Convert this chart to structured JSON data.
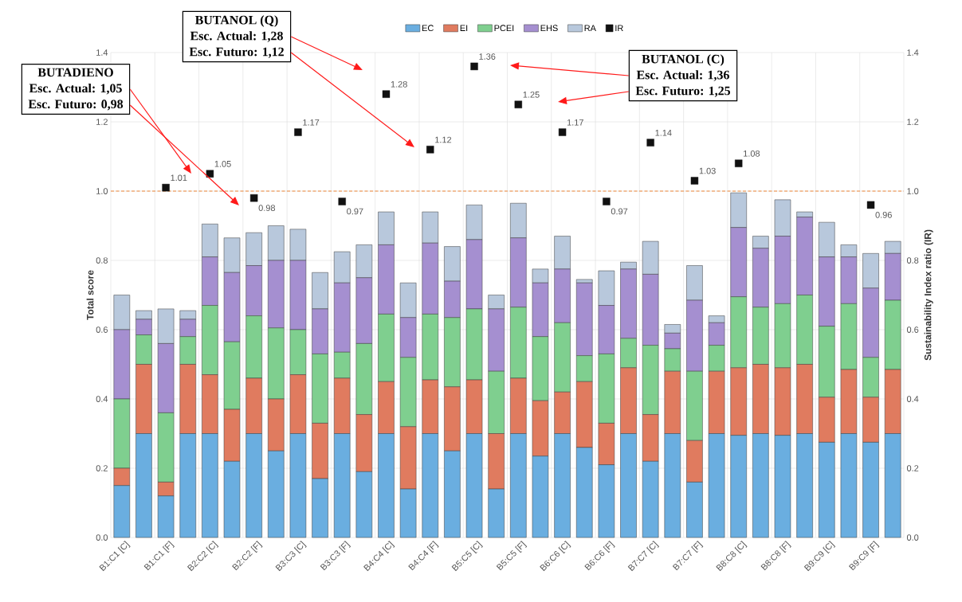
{
  "chart_data": {
    "type": "bar",
    "stacked": true,
    "ylabel": "Total score",
    "y2label": "Sustainability Index ratio (IR)",
    "categories": [
      "B1:C1 [C]",
      null,
      "B1:C1 [F]",
      null,
      "B2:C2 [C]",
      null,
      "B2:C2 [F]",
      null,
      "B3:C3 [C]",
      null,
      "B3:C3 [F]",
      null,
      "B4:C4 [C]",
      null,
      "B4:C4 [F]",
      null,
      "B5:C5 [C]",
      null,
      "B5:C5 [F]",
      null,
      "B6:C6 [C]",
      null,
      "B6:C6 [F]",
      null,
      "B7:C7 [C]",
      null,
      "B7:C7 [F]",
      null,
      "B8:C8 [C]",
      null,
      "B8:C8 [F]",
      null,
      "B9:C9 [C]",
      null,
      "B9:C9 [F]",
      null
    ],
    "series": [
      {
        "name": "EC",
        "color": "#6aaee0",
        "values": [
          0.15,
          0.3,
          0.12,
          0.3,
          0.3,
          0.22,
          0.3,
          0.25,
          0.3,
          0.17,
          0.3,
          0.19,
          0.3,
          0.14,
          0.3,
          0.25,
          0.3,
          0.14,
          0.3,
          0.235,
          0.3,
          0.26,
          0.21,
          0.3,
          0.22,
          0.3,
          0.16,
          0.3,
          0.295,
          0.3,
          0.295,
          0.3,
          0.275,
          0.3,
          0.275,
          0.3
        ]
      },
      {
        "name": "EI",
        "color": "#e07b5f",
        "values": [
          0.05,
          0.2,
          0.04,
          0.2,
          0.17,
          0.15,
          0.16,
          0.15,
          0.17,
          0.16,
          0.16,
          0.165,
          0.15,
          0.18,
          0.155,
          0.185,
          0.155,
          0.16,
          0.16,
          0.16,
          0.12,
          0.19,
          0.12,
          0.19,
          0.135,
          0.18,
          0.12,
          0.18,
          0.195,
          0.2,
          0.195,
          0.2,
          0.13,
          0.185,
          0.13,
          0.185
        ]
      },
      {
        "name": "PCEI",
        "color": "#7fcf8f",
        "values": [
          0.2,
          0.085,
          0.2,
          0.08,
          0.2,
          0.195,
          0.18,
          0.205,
          0.13,
          0.2,
          0.075,
          0.205,
          0.195,
          0.2,
          0.19,
          0.2,
          0.205,
          0.18,
          0.205,
          0.185,
          0.2,
          0.075,
          0.2,
          0.085,
          0.2,
          0.065,
          0.2,
          0.075,
          0.205,
          0.165,
          0.185,
          0.2,
          0.205,
          0.19,
          0.115,
          0.2
        ]
      },
      {
        "name": "EHS",
        "color": "#a58fd0",
        "values": [
          0.2,
          0.045,
          0.2,
          0.05,
          0.14,
          0.2,
          0.145,
          0.195,
          0.2,
          0.13,
          0.2,
          0.19,
          0.2,
          0.115,
          0.205,
          0.105,
          0.2,
          0.18,
          0.2,
          0.155,
          0.155,
          0.21,
          0.14,
          0.2,
          0.205,
          0.045,
          0.205,
          0.065,
          0.2,
          0.17,
          0.195,
          0.225,
          0.2,
          0.135,
          0.2,
          0.135
        ]
      },
      {
        "name": "RA",
        "color": "#b8c8dc",
        "values": [
          0.1,
          0.025,
          0.1,
          0.025,
          0.095,
          0.1,
          0.095,
          0.1,
          0.09,
          0.105,
          0.09,
          0.095,
          0.095,
          0.1,
          0.09,
          0.1,
          0.1,
          0.04,
          0.1,
          0.04,
          0.095,
          0.01,
          0.1,
          0.02,
          0.095,
          0.025,
          0.1,
          0.02,
          0.1,
          0.035,
          0.105,
          0.015,
          0.1,
          0.035,
          0.1,
          0.035
        ]
      },
      {
        "name": "IR",
        "type": "scatter",
        "axis": "y2",
        "marker": "square",
        "color": "#111111",
        "values": [
          null,
          null,
          1.01,
          null,
          1.05,
          null,
          0.98,
          null,
          1.17,
          null,
          0.97,
          null,
          1.28,
          null,
          1.12,
          null,
          1.36,
          null,
          1.25,
          null,
          1.17,
          null,
          0.97,
          null,
          1.14,
          null,
          1.03,
          null,
          1.08,
          null,
          null,
          null,
          null,
          null,
          0.96,
          null
        ],
        "value_labels": [
          null,
          null,
          "1.01",
          null,
          "1.05",
          null,
          "0.98",
          null,
          "1.17",
          null,
          "0.97",
          null,
          "1.28",
          null,
          "1.12",
          null,
          "1.36",
          null,
          "1.25",
          null,
          "1.17",
          null,
          "0.97",
          null,
          "1.14",
          null,
          "1.03",
          null,
          "1.08",
          null,
          null,
          null,
          null,
          null,
          "0.96",
          null
        ]
      }
    ],
    "ylim": [
      0,
      1.4
    ],
    "yticks": [
      {
        "value": 0,
        "label": "0.0"
      },
      0.2,
      0.4,
      0.6,
      0.8,
      {
        "value": 1,
        "label": "1.0"
      },
      1.2,
      1.4
    ],
    "y2lim": [
      0,
      1.4
    ],
    "y2ticks": [
      {
        "value": 0,
        "label": "0.0"
      },
      0.2,
      0.4,
      0.6,
      0.8,
      {
        "value": 1,
        "label": "1.0"
      },
      1.2,
      1.4
    ],
    "ref_lines": [
      {
        "axis": "y2",
        "value": 1,
        "color": "#f08a3c",
        "line_style": "dashed"
      }
    ],
    "grid": true,
    "legend": "top",
    "annotations": [
      "BUTADIENO",
      "Esc. Actual: 1,05",
      "Esc. Futuro: 0,98",
      "BUTANOL (Q)",
      "Esc. Actual: 1,28",
      "Esc. Futuro: 1,12",
      "BUTANOL (C)",
      "Esc. Actual: 1,36",
      "Esc. Futuro: 1,25"
    ]
  }
}
